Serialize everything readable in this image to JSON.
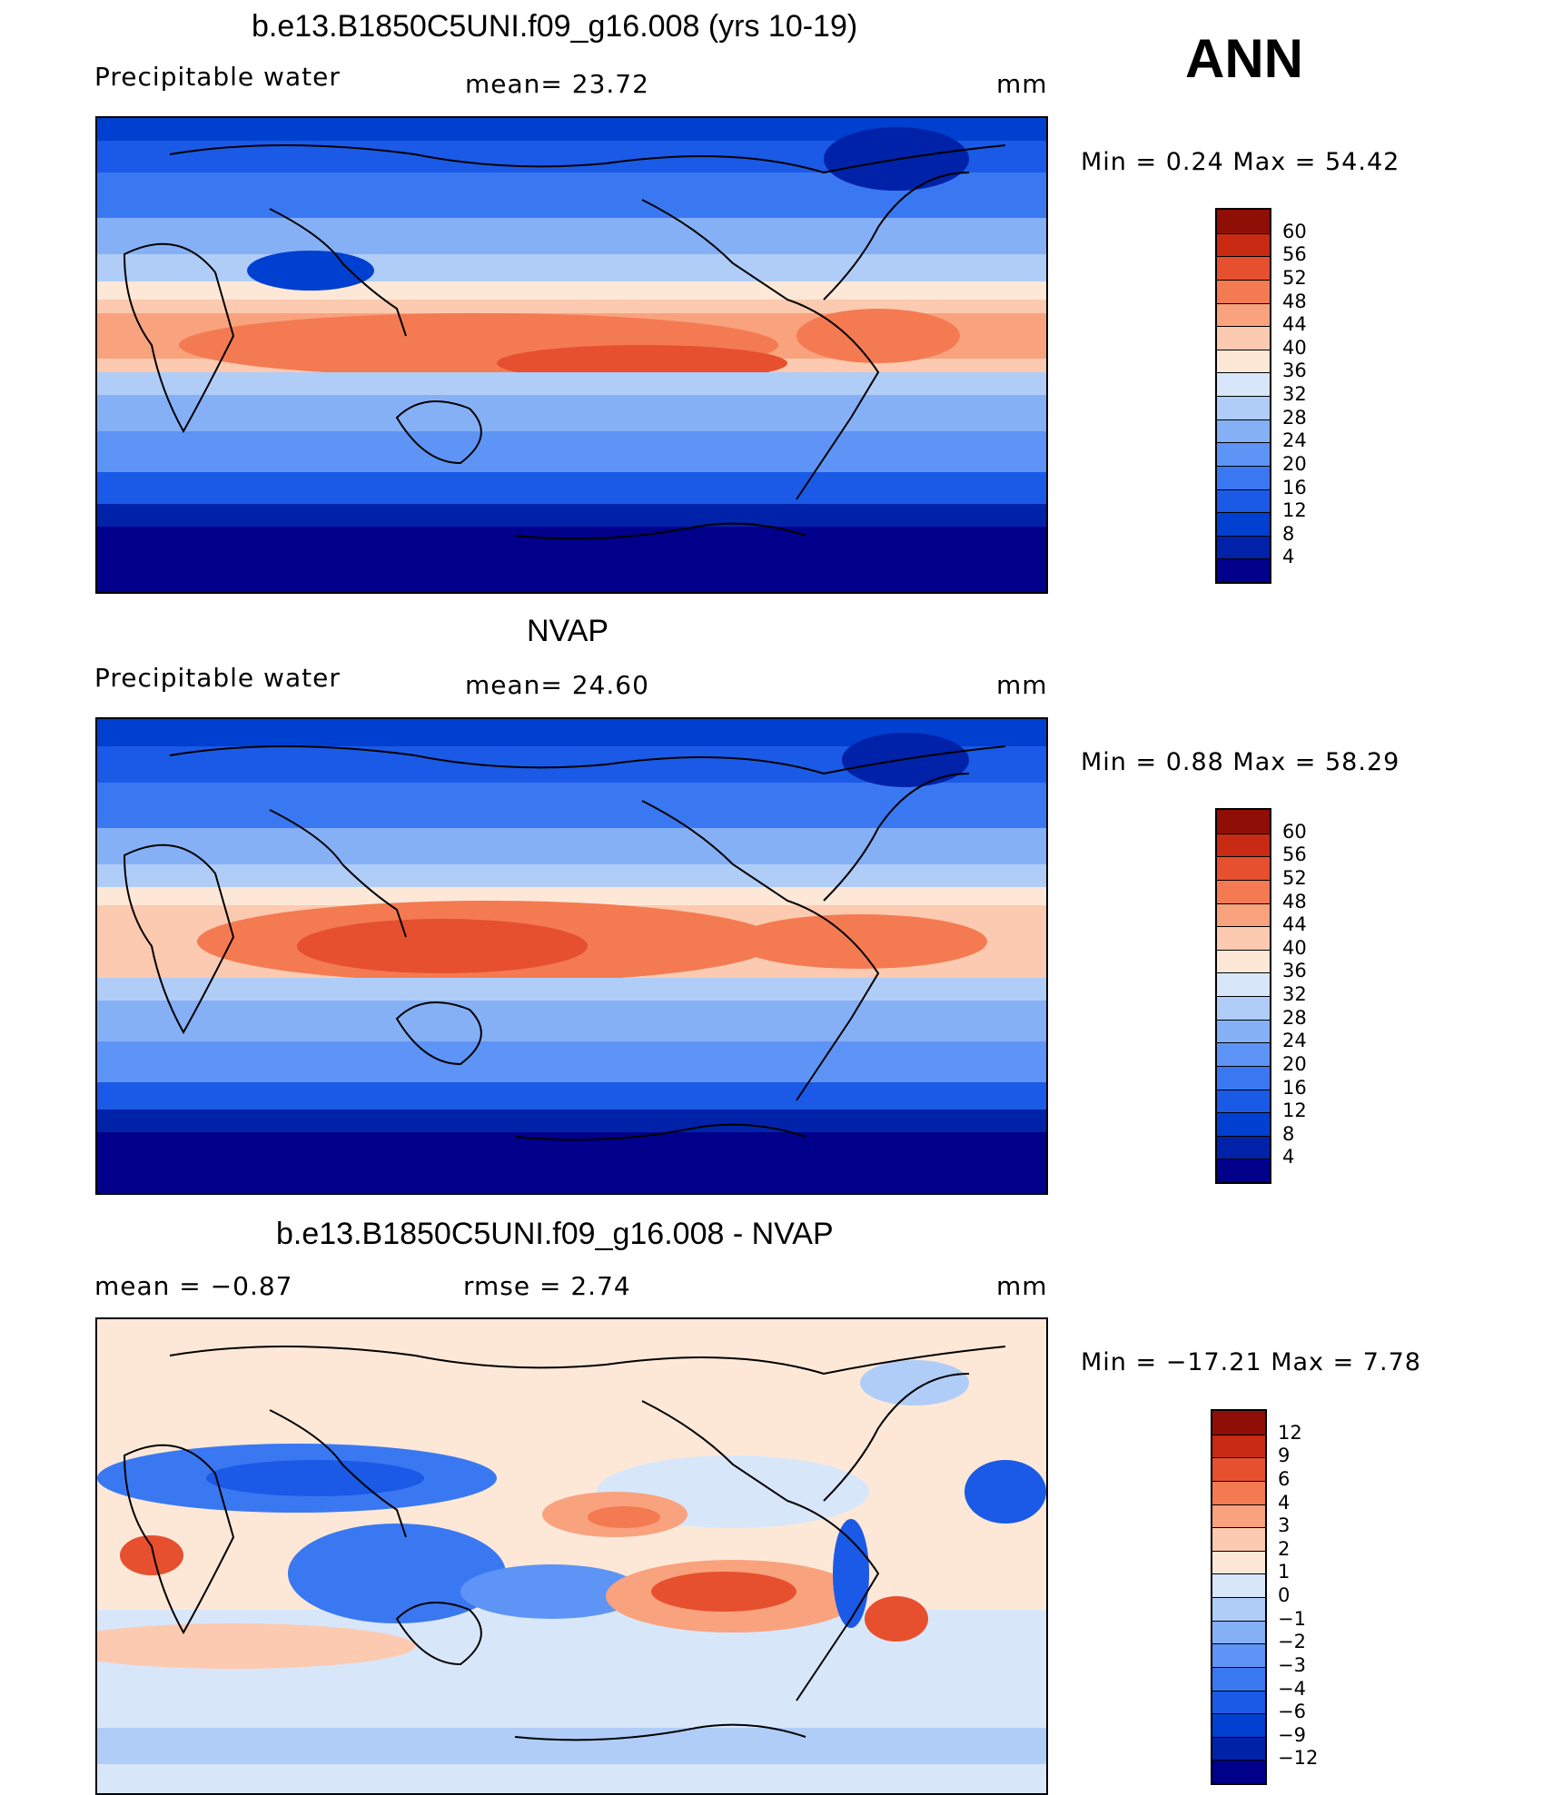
{
  "season": "ANN",
  "panels": [
    {
      "id": "model",
      "title": "b.e13.B1850C5UNI.f09_g16.008 (yrs 10-19)",
      "left_label": "Precipitable  water",
      "center_label": "mean=   23.72",
      "units": "mm",
      "minmax": "Min  =     0.24  Max  =    54.42",
      "colorbar_ticks": [
        "60",
        "56",
        "52",
        "48",
        "44",
        "40",
        "36",
        "32",
        "28",
        "24",
        "20",
        "16",
        "12",
        "8",
        "4"
      ]
    },
    {
      "id": "obs",
      "title": "NVAP",
      "left_label": "Precipitable  water",
      "center_label": "mean=   24.60",
      "units": "mm",
      "minmax": "Min  =     0.88  Max  =    58.29",
      "colorbar_ticks": [
        "60",
        "56",
        "52",
        "48",
        "44",
        "40",
        "36",
        "32",
        "28",
        "24",
        "20",
        "16",
        "12",
        "8",
        "4"
      ]
    },
    {
      "id": "diff",
      "title": "b.e13.B1850C5UNI.f09_g16.008 - NVAP",
      "left_label": "mean  =    −0.87",
      "center_label": "rmse  =     2.74",
      "units": "mm",
      "minmax": "Min  = −17.21  Max  =      7.78",
      "colorbar_ticks": [
        "12",
        "9",
        "6",
        "4",
        "3",
        "2",
        "1",
        "0",
        "−1",
        "−2",
        "−3",
        "−4",
        "−6",
        "−9",
        "−12"
      ]
    }
  ],
  "colors": {
    "field_scale": [
      "#00008a",
      "#0022a8",
      "#0040d0",
      "#1a5ae6",
      "#3a78f2",
      "#5e94f5",
      "#86b0f6",
      "#b0cdf7",
      "#d8e6fa",
      "#fde8d8",
      "#fccab0",
      "#f9a27e",
      "#f47a52",
      "#e6502e",
      "#c82a14",
      "#8f0e06"
    ],
    "diff_scale": [
      "#00008a",
      "#0022a8",
      "#0040d0",
      "#1a5ae6",
      "#3a78f2",
      "#5e94f5",
      "#86b0f6",
      "#b0cdf7",
      "#d8e6fa",
      "#fde8d8",
      "#fccab0",
      "#f9a27e",
      "#f47a52",
      "#e6502e",
      "#c82a14",
      "#8f0e06"
    ]
  }
}
